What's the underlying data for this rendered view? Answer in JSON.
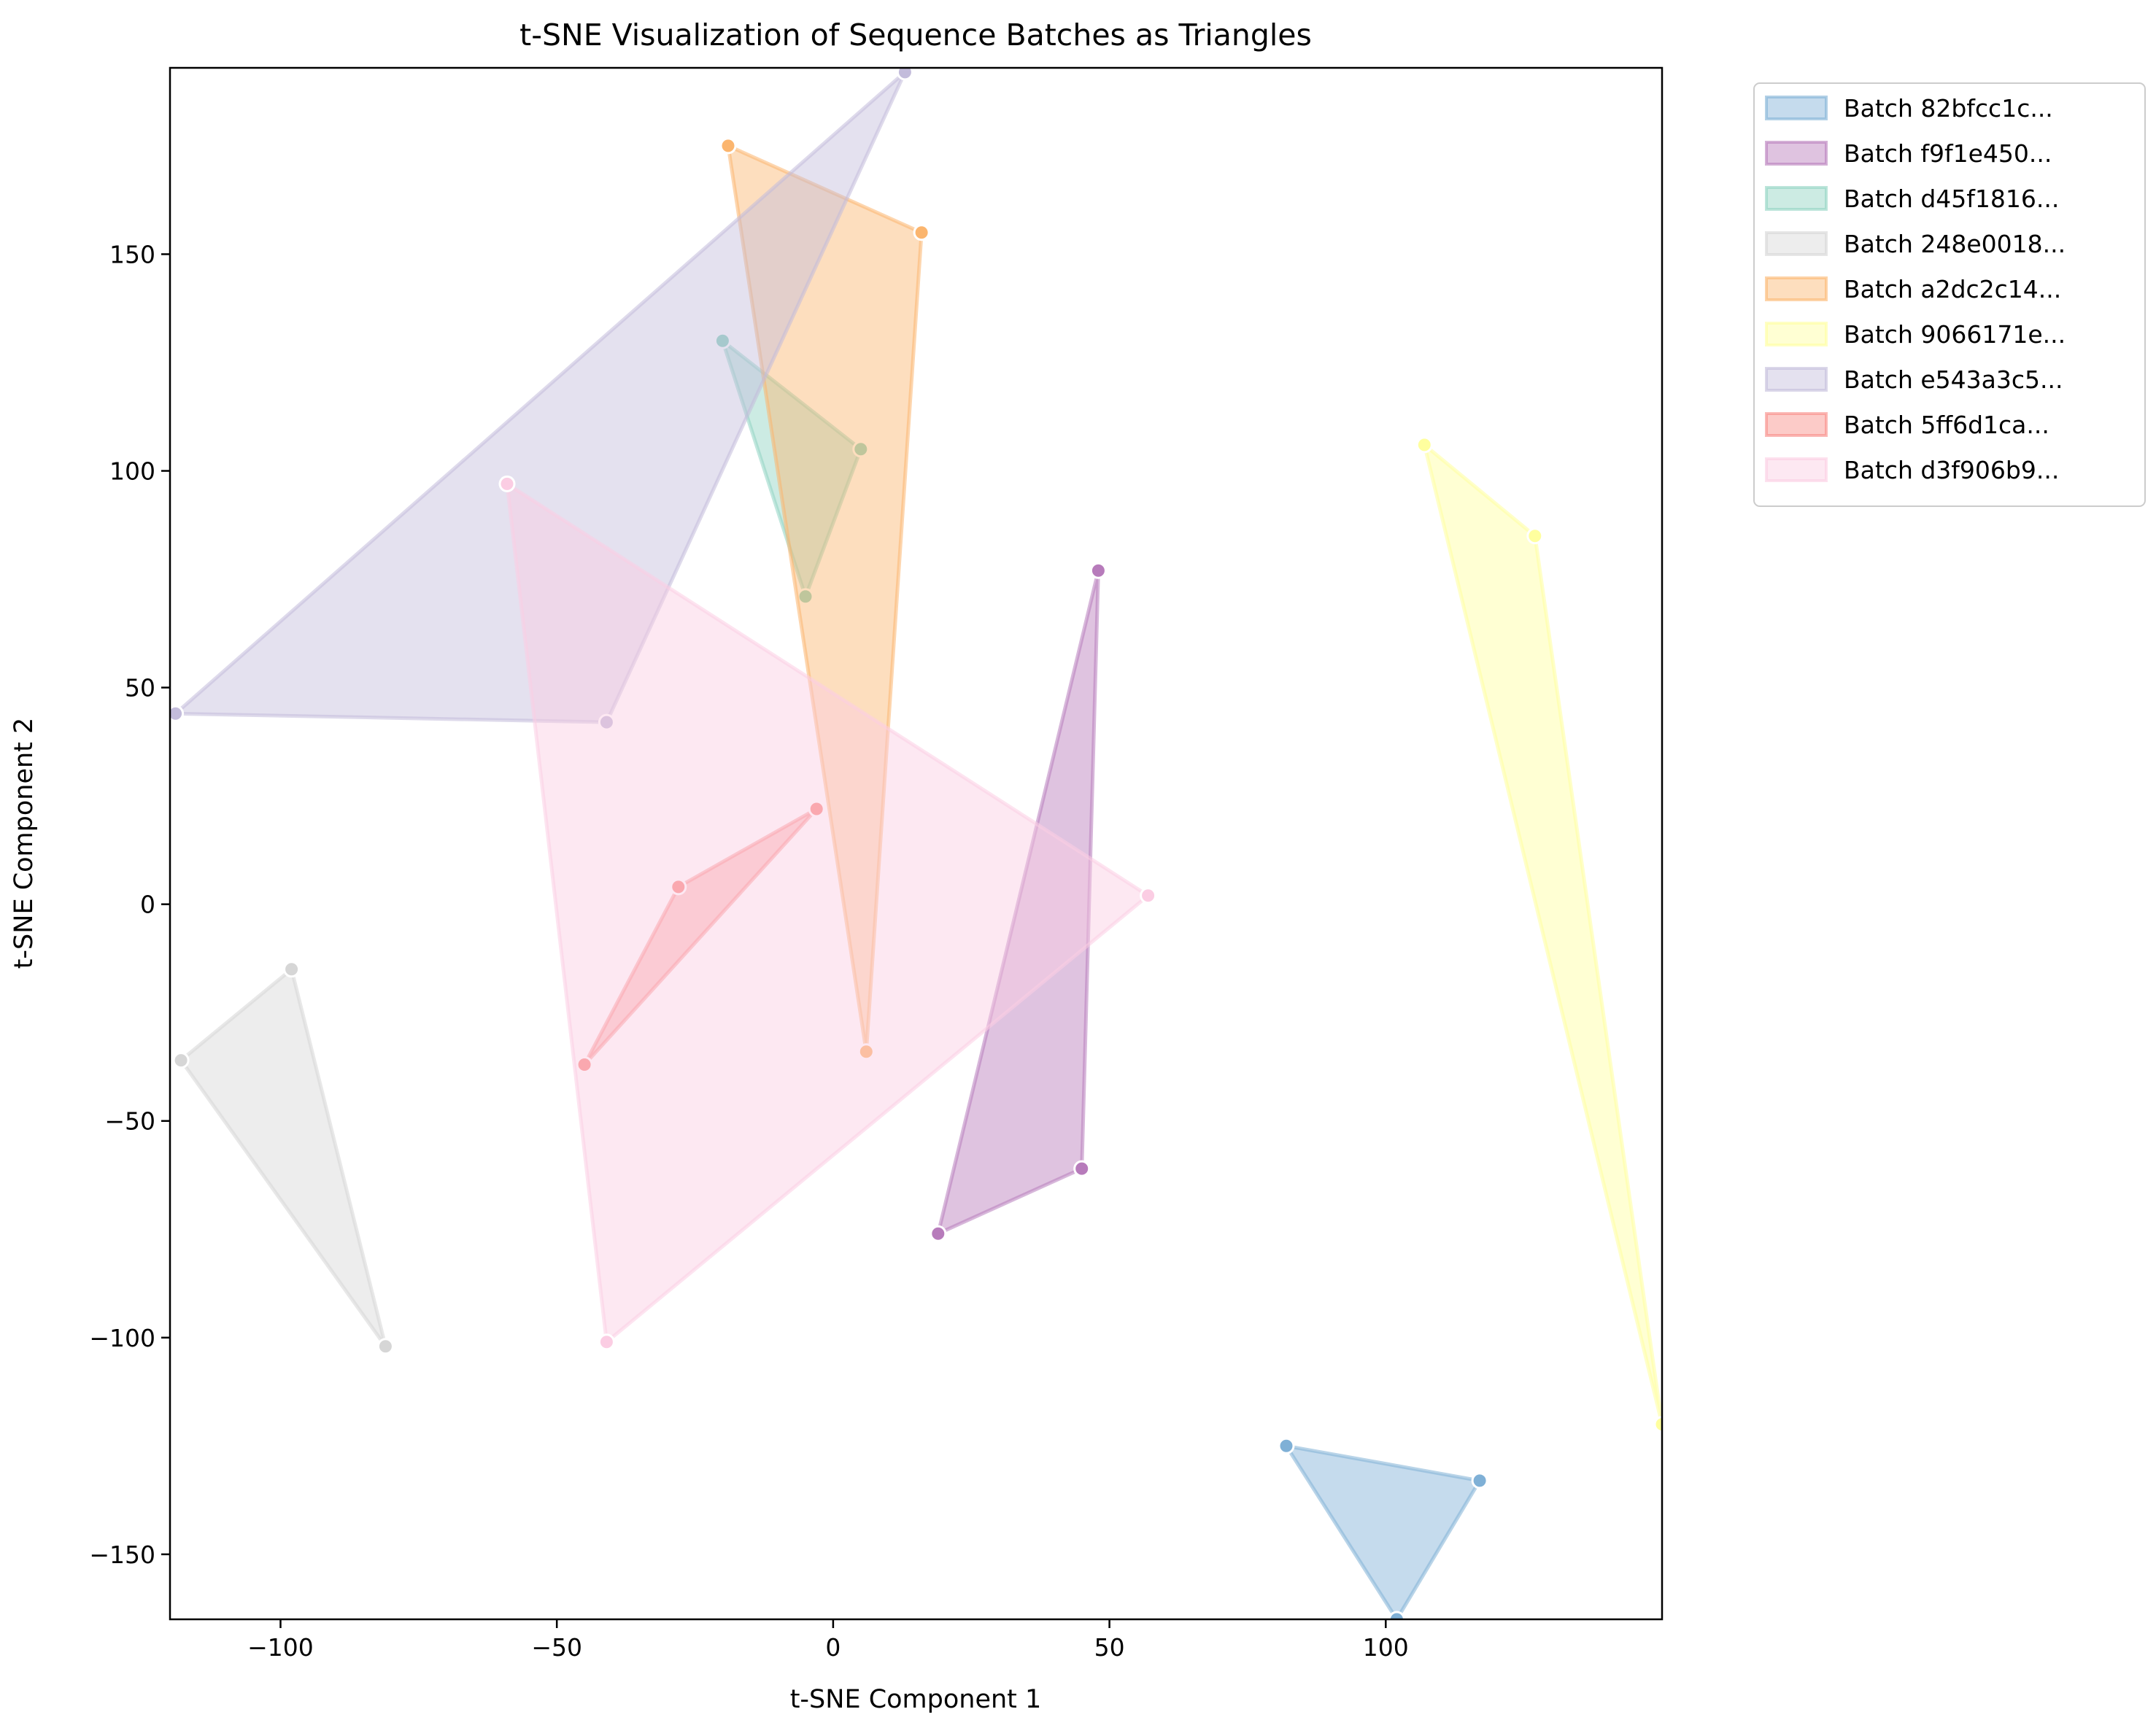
{
  "chart_data": {
    "type": "scatter",
    "title": "t-SNE Visualization of Sequence Batches as Triangles",
    "xlabel": "t-SNE Component 1",
    "ylabel": "t-SNE Component 2",
    "xlim": [
      -120,
      150
    ],
    "ylim": [
      -165,
      193
    ],
    "xticks": [
      -100,
      -50,
      0,
      50,
      100
    ],
    "yticks": [
      -150,
      -100,
      -50,
      0,
      50,
      100,
      150
    ],
    "xtick_labels": [
      "−100",
      "−50",
      "0",
      "50",
      "100"
    ],
    "ytick_labels": [
      "−150",
      "−100",
      "−50",
      "0",
      "50",
      "100",
      "150"
    ],
    "grid": false,
    "legend_position": "outside-upper-right",
    "series": [
      {
        "name": "Batch 82bfcc1c...",
        "color": "#7fb0d6",
        "points": [
          [
            82,
            -125
          ],
          [
            117,
            -133
          ],
          [
            102,
            -165
          ]
        ]
      },
      {
        "name": "Batch f9f1e450...",
        "color": "#b77bbb",
        "points": [
          [
            48,
            77
          ],
          [
            45,
            -61
          ],
          [
            19,
            -76
          ]
        ]
      },
      {
        "name": "Batch d45f1816...",
        "color": "#8fd3c2",
        "points": [
          [
            -20,
            130
          ],
          [
            5,
            105
          ],
          [
            -5,
            71
          ]
        ]
      },
      {
        "name": "Batch 248e0018...",
        "color": "#d6d6d6",
        "points": [
          [
            -98,
            -15
          ],
          [
            -118,
            -36
          ],
          [
            -81,
            -102
          ]
        ]
      },
      {
        "name": "Batch a2dc2c14...",
        "color": "#fbb56e",
        "points": [
          [
            -19,
            175
          ],
          [
            16,
            155
          ],
          [
            6,
            -34
          ]
        ]
      },
      {
        "name": "Batch 9066171e...",
        "color": "#ffff9e",
        "points": [
          [
            107,
            106
          ],
          [
            127,
            85
          ],
          [
            150,
            -120
          ]
        ]
      },
      {
        "name": "Batch e543a3c5...",
        "color": "#c3bcdb",
        "points": [
          [
            13,
            192
          ],
          [
            -119,
            44
          ],
          [
            -41,
            42
          ]
        ]
      },
      {
        "name": "Batch 5ff6d1ca...",
        "color": "#f98b86",
        "points": [
          [
            -3,
            22
          ],
          [
            -28,
            4
          ],
          [
            -45,
            -37
          ]
        ]
      },
      {
        "name": "Batch d3f906b9...",
        "color": "#fbcde3",
        "points": [
          [
            -59,
            97
          ],
          [
            57,
            2
          ],
          [
            -41,
            -101
          ]
        ]
      }
    ]
  }
}
